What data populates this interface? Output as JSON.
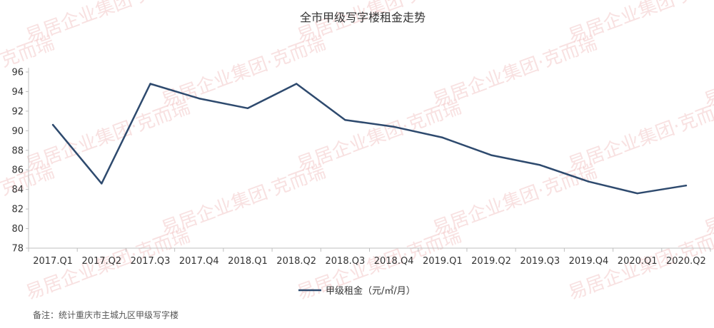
{
  "chart_data": {
    "type": "line",
    "title": "全市甲级写字楼租金走势",
    "categories": [
      "2017.Q1",
      "2017.Q2",
      "2017.Q3",
      "2017.Q4",
      "2018.Q1",
      "2018.Q2",
      "2018.Q3",
      "2018.Q4",
      "2019.Q1",
      "2019.Q2",
      "2019.Q3",
      "2019.Q4",
      "2020.Q1",
      "2020.Q2"
    ],
    "series": [
      {
        "name": "甲级租金（元/㎡/月）",
        "values": [
          90.6,
          84.6,
          94.8,
          93.3,
          92.3,
          94.8,
          91.1,
          90.4,
          89.3,
          87.5,
          86.5,
          84.8,
          83.6,
          84.4
        ],
        "color": "#2e4a6e"
      }
    ],
    "ylim": [
      78,
      96
    ],
    "yticks": [
      78,
      80,
      82,
      84,
      86,
      88,
      90,
      92,
      94,
      96
    ],
    "grid": false,
    "legend_position": "bottom-center",
    "note": "备注：统计重庆市主城九区甲级写字楼"
  },
  "watermark": {
    "text": "易居企业集团·克而瑞",
    "color": "#f3c9c9"
  }
}
